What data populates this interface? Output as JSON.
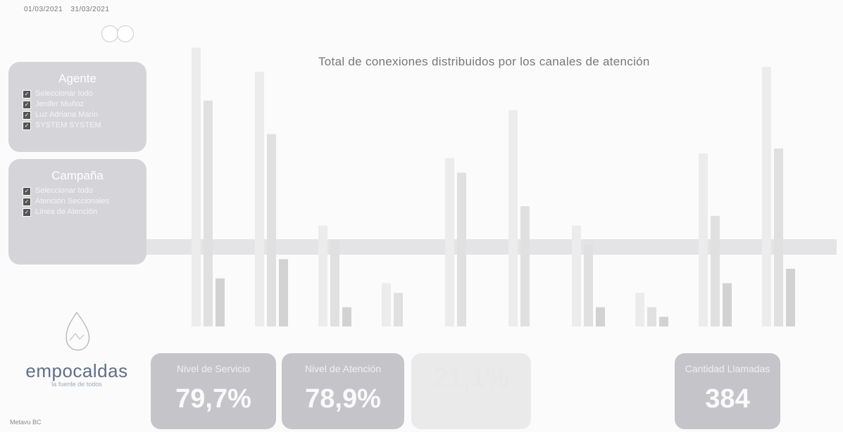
{
  "date_range": {
    "from": "01/03/2021",
    "to": "31/03/2021"
  },
  "chart": {
    "title": "Total de conexiones distribuidos por los canales de atención"
  },
  "chart_data": {
    "type": "bar",
    "values": [
      [
        58,
        47,
        10
      ],
      [
        53,
        40,
        14
      ],
      [
        21,
        18,
        4
      ],
      [
        9,
        7,
        0
      ],
      [
        35,
        32,
        0
      ],
      [
        45,
        25,
        0
      ],
      [
        21,
        17,
        4
      ],
      [
        7,
        4,
        2
      ],
      [
        36,
        23,
        9
      ],
      [
        54,
        37,
        12
      ]
    ],
    "colors": [
      "#ececec",
      "#e0e0e0",
      "#d2d2d2"
    ]
  },
  "filters": {
    "agente": {
      "title": "Agente",
      "items": [
        "Seleccionar todo",
        "Jenifer Muñoz",
        "Luz Adriana Marín",
        "SYSTEM SYSTEM"
      ]
    },
    "campana": {
      "title": "Campaña",
      "items": [
        "Seleccionar todo",
        "Atención Seccionales",
        "Línea de Atención"
      ]
    }
  },
  "logo": {
    "name": "empocaldas",
    "tagline": "la fuente de todos"
  },
  "footer": {
    "text": "Metavu BC"
  },
  "kpis": [
    {
      "label": "Nivel de Servicio",
      "value": "79,7%"
    },
    {
      "label": "Nivel de Atención",
      "value": "78,9%"
    },
    {
      "label": "",
      "value": "21,1%"
    },
    {
      "label": "Cantidad Llamadas",
      "value": "384"
    }
  ]
}
